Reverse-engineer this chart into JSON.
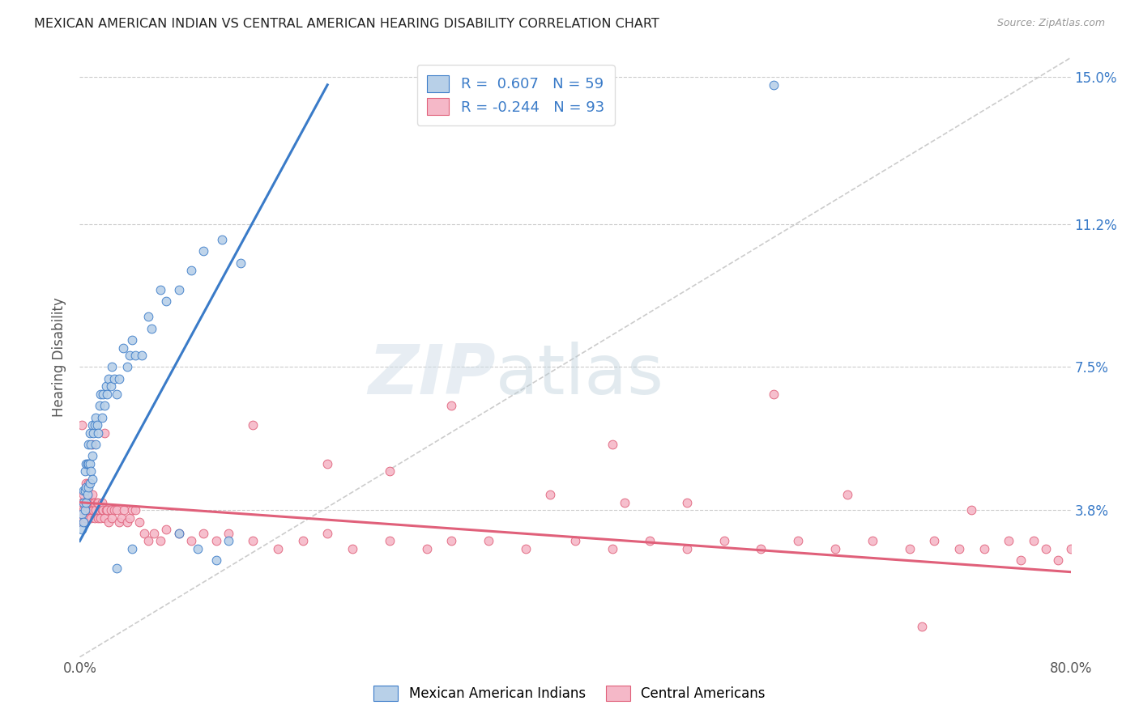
{
  "title": "MEXICAN AMERICAN INDIAN VS CENTRAL AMERICAN HEARING DISABILITY CORRELATION CHART",
  "source": "Source: ZipAtlas.com",
  "ylabel": "Hearing Disability",
  "xlim": [
    0.0,
    0.8
  ],
  "ylim": [
    0.0,
    0.155
  ],
  "xticks": [
    0.0,
    0.2,
    0.4,
    0.6,
    0.8
  ],
  "xticklabels": [
    "0.0%",
    "",
    "",
    "",
    "80.0%"
  ],
  "yticks": [
    0.038,
    0.075,
    0.112,
    0.15
  ],
  "yticklabels": [
    "3.8%",
    "7.5%",
    "11.2%",
    "15.0%"
  ],
  "blue_R": 0.607,
  "blue_N": 59,
  "pink_R": -0.244,
  "pink_N": 93,
  "blue_color": "#b8d0e8",
  "pink_color": "#f5b8c8",
  "blue_line_color": "#3a7bc8",
  "pink_line_color": "#e0607a",
  "diagonal_line_color": "#cccccc",
  "watermark_zip": "ZIP",
  "watermark_atlas": "atlas",
  "legend_label_blue": "Mexican American Indians",
  "legend_label_pink": "Central Americans",
  "blue_line_x0": 0.0,
  "blue_line_y0": 0.03,
  "blue_line_x1": 0.2,
  "blue_line_y1": 0.148,
  "pink_line_x0": 0.0,
  "pink_line_y0": 0.04,
  "pink_line_x1": 0.8,
  "pink_line_y1": 0.022,
  "blue_x": [
    0.002,
    0.002,
    0.003,
    0.003,
    0.003,
    0.004,
    0.004,
    0.004,
    0.005,
    0.005,
    0.005,
    0.006,
    0.006,
    0.007,
    0.007,
    0.007,
    0.008,
    0.008,
    0.008,
    0.009,
    0.009,
    0.01,
    0.01,
    0.01,
    0.011,
    0.012,
    0.013,
    0.013,
    0.014,
    0.015,
    0.016,
    0.017,
    0.018,
    0.019,
    0.02,
    0.021,
    0.022,
    0.023,
    0.025,
    0.026,
    0.028,
    0.03,
    0.032,
    0.035,
    0.038,
    0.04,
    0.042,
    0.045,
    0.05,
    0.055,
    0.058,
    0.065,
    0.07,
    0.08,
    0.09,
    0.1,
    0.115,
    0.13,
    0.56
  ],
  "blue_y": [
    0.033,
    0.037,
    0.035,
    0.04,
    0.043,
    0.038,
    0.043,
    0.048,
    0.04,
    0.044,
    0.05,
    0.042,
    0.05,
    0.044,
    0.05,
    0.055,
    0.045,
    0.05,
    0.058,
    0.048,
    0.055,
    0.046,
    0.052,
    0.06,
    0.058,
    0.06,
    0.055,
    0.062,
    0.06,
    0.058,
    0.065,
    0.068,
    0.062,
    0.068,
    0.065,
    0.07,
    0.068,
    0.072,
    0.07,
    0.075,
    0.072,
    0.068,
    0.072,
    0.08,
    0.075,
    0.078,
    0.082,
    0.078,
    0.078,
    0.088,
    0.085,
    0.095,
    0.092,
    0.095,
    0.1,
    0.105,
    0.108,
    0.102,
    0.148
  ],
  "blue_outliers_x": [
    0.03,
    0.042,
    0.08,
    0.095,
    0.11,
    0.12
  ],
  "blue_outliers_y": [
    0.023,
    0.028,
    0.032,
    0.028,
    0.025,
    0.03
  ],
  "pink_x": [
    0.001,
    0.002,
    0.002,
    0.003,
    0.003,
    0.004,
    0.004,
    0.005,
    0.005,
    0.005,
    0.006,
    0.006,
    0.006,
    0.007,
    0.007,
    0.007,
    0.008,
    0.008,
    0.009,
    0.009,
    0.01,
    0.01,
    0.011,
    0.011,
    0.012,
    0.012,
    0.013,
    0.014,
    0.015,
    0.015,
    0.016,
    0.017,
    0.018,
    0.018,
    0.019,
    0.02,
    0.021,
    0.022,
    0.023,
    0.025,
    0.026,
    0.028,
    0.03,
    0.032,
    0.034,
    0.036,
    0.038,
    0.04,
    0.042,
    0.045,
    0.048,
    0.052,
    0.055,
    0.06,
    0.065,
    0.07,
    0.08,
    0.09,
    0.1,
    0.11,
    0.12,
    0.14,
    0.16,
    0.18,
    0.2,
    0.22,
    0.25,
    0.28,
    0.3,
    0.33,
    0.36,
    0.4,
    0.43,
    0.46,
    0.49,
    0.52,
    0.55,
    0.58,
    0.61,
    0.64,
    0.67,
    0.69,
    0.71,
    0.73,
    0.75,
    0.76,
    0.77,
    0.78,
    0.79,
    0.8,
    0.44,
    0.56,
    0.72
  ],
  "pink_y": [
    0.035,
    0.036,
    0.04,
    0.038,
    0.042,
    0.035,
    0.04,
    0.036,
    0.04,
    0.045,
    0.038,
    0.04,
    0.043,
    0.038,
    0.042,
    0.045,
    0.038,
    0.04,
    0.036,
    0.04,
    0.038,
    0.042,
    0.038,
    0.04,
    0.036,
    0.04,
    0.038,
    0.04,
    0.036,
    0.04,
    0.038,
    0.036,
    0.038,
    0.04,
    0.038,
    0.036,
    0.038,
    0.038,
    0.035,
    0.038,
    0.036,
    0.038,
    0.038,
    0.035,
    0.036,
    0.038,
    0.035,
    0.036,
    0.038,
    0.038,
    0.035,
    0.032,
    0.03,
    0.032,
    0.03,
    0.033,
    0.032,
    0.03,
    0.032,
    0.03,
    0.032,
    0.03,
    0.028,
    0.03,
    0.032,
    0.028,
    0.03,
    0.028,
    0.03,
    0.03,
    0.028,
    0.03,
    0.028,
    0.03,
    0.028,
    0.03,
    0.028,
    0.03,
    0.028,
    0.03,
    0.028,
    0.03,
    0.028,
    0.028,
    0.03,
    0.025,
    0.03,
    0.028,
    0.025,
    0.028,
    0.04,
    0.068,
    0.038
  ],
  "pink_outliers_x": [
    0.002,
    0.01,
    0.02,
    0.14,
    0.2,
    0.25,
    0.3,
    0.38,
    0.43,
    0.49,
    0.62,
    0.68
  ],
  "pink_outliers_y": [
    0.06,
    0.055,
    0.058,
    0.06,
    0.05,
    0.048,
    0.065,
    0.042,
    0.055,
    0.04,
    0.042,
    0.008
  ]
}
